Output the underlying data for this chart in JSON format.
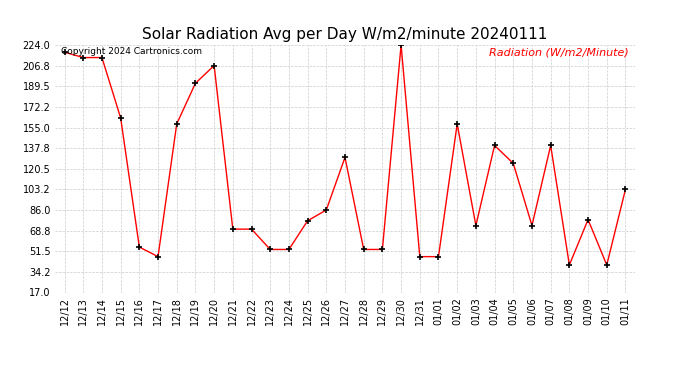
{
  "title": "Solar Radiation Avg per Day W/m2/minute 20240111",
  "copyright_text": "Copyright 2024 Cartronics.com",
  "legend_text": "Radiation (W/m2/Minute)",
  "dates": [
    "12/12",
    "12/13",
    "12/14",
    "12/15",
    "12/16",
    "12/17",
    "12/18",
    "12/19",
    "12/20",
    "12/21",
    "12/22",
    "12/23",
    "12/24",
    "12/25",
    "12/26",
    "12/27",
    "12/28",
    "12/29",
    "12/30",
    "12/31",
    "01/01",
    "01/02",
    "01/03",
    "01/04",
    "01/05",
    "01/06",
    "01/07",
    "01/08",
    "01/09",
    "01/10",
    "01/11"
  ],
  "values": [
    218.0,
    213.5,
    213.5,
    163.0,
    55.0,
    47.0,
    158.0,
    192.0,
    206.8,
    70.0,
    70.0,
    53.0,
    53.0,
    77.0,
    86.0,
    130.0,
    53.0,
    53.0,
    224.0,
    47.0,
    47.0,
    158.0,
    73.0,
    140.0,
    125.0,
    73.0,
    140.0,
    40.0,
    78.0,
    40.0,
    103.2
  ],
  "ylim": [
    17.0,
    224.0
  ],
  "yticks": [
    17.0,
    34.2,
    51.5,
    68.8,
    86.0,
    103.2,
    120.5,
    137.8,
    155.0,
    172.2,
    189.5,
    206.8,
    224.0
  ],
  "line_color": "red",
  "marker_color": "black",
  "bg_color": "white",
  "grid_color": "#cccccc",
  "title_fontsize": 11,
  "tick_fontsize": 7,
  "copyright_fontsize": 6.5,
  "legend_fontsize": 8,
  "fig_width": 6.9,
  "fig_height": 3.75,
  "fig_dpi": 100
}
